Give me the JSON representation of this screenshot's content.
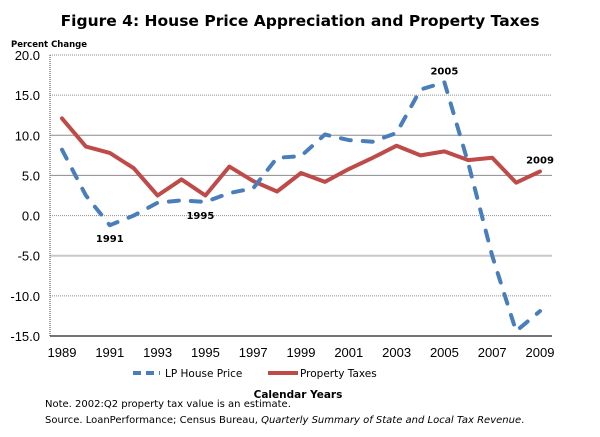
{
  "chart_data": {
    "type": "line",
    "title": "Figure 4: House Price Appreciation and Property Taxes",
    "ylabel": "Percent Change",
    "xlabel": "Calendar Years",
    "ylim": [
      -15,
      20
    ],
    "yticks": [
      "20.0",
      "15.0",
      "10.0",
      "5.0",
      "0.0",
      "-5.0",
      "-10.0",
      "-15.0"
    ],
    "ytick_values": [
      20,
      15,
      10,
      5,
      0,
      -5,
      -10,
      -15
    ],
    "x": [
      1989,
      1990,
      1991,
      1992,
      1993,
      1994,
      1995,
      1996,
      1997,
      1998,
      1999,
      2000,
      2001,
      2002,
      2003,
      2004,
      2005,
      2006,
      2007,
      2008,
      2009
    ],
    "xticks": [
      "1989",
      "1991",
      "1993",
      "1995",
      "1997",
      "1999",
      "2001",
      "2003",
      "2005",
      "2007",
      "2009"
    ],
    "xtick_values": [
      1989,
      1991,
      1993,
      1995,
      1997,
      1999,
      2001,
      2003,
      2005,
      2007,
      2009
    ],
    "grid": true,
    "legend_position": "bottom",
    "series": [
      {
        "name": "LP House Price",
        "style": "dashed",
        "color": "#4a7ebb",
        "values": [
          8.2,
          2.5,
          -1.2,
          0.0,
          1.6,
          1.9,
          1.7,
          2.8,
          3.4,
          7.2,
          7.4,
          10.1,
          9.4,
          9.2,
          10.3,
          15.7,
          16.6,
          6.5,
          -5.0,
          -14.4,
          -11.9
        ]
      },
      {
        "name": "Property Taxes",
        "style": "solid",
        "color": "#be4b48",
        "values": [
          12.1,
          8.6,
          7.8,
          5.9,
          2.5,
          4.5,
          2.5,
          6.1,
          4.3,
          3.0,
          5.3,
          4.2,
          5.8,
          7.2,
          8.7,
          7.5,
          8.0,
          6.9,
          7.2,
          4.1,
          5.5
        ]
      }
    ],
    "annotations": [
      {
        "text": "1991",
        "series": "LP House Price",
        "x": 1991,
        "position": "below"
      },
      {
        "text": "1995",
        "series": "LP House Price",
        "x": 1995,
        "position": "below"
      },
      {
        "text": "2005",
        "series": "LP House Price",
        "x": 2005,
        "position": "above"
      },
      {
        "text": "2009",
        "series": "Property Taxes",
        "x": 2009,
        "position": "above"
      }
    ]
  },
  "notes": {
    "note": "Note.  2002:Q2 property tax value is an estimate.",
    "source_prefix": "Source.  LoanPerformance; Census Bureau, ",
    "source_italic": "Quarterly Summary of State and Local Tax Revenue",
    "source_suffix": "."
  }
}
